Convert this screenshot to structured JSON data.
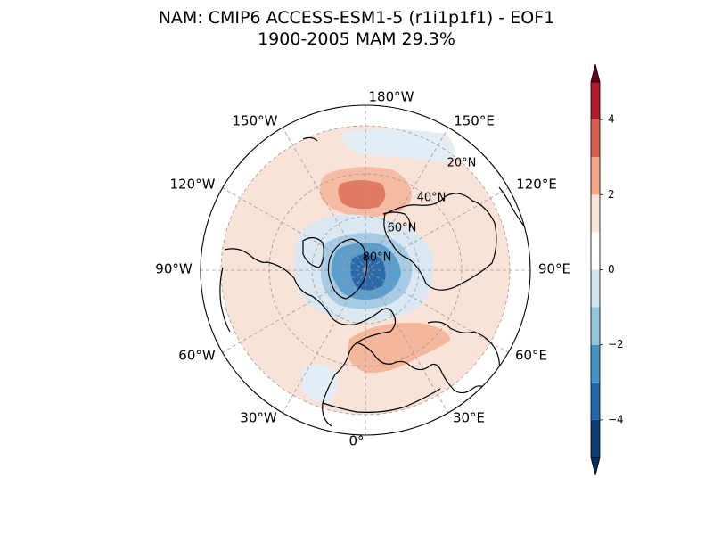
{
  "title": {
    "line1": "NAM: CMIP6 ACCESS-ESM1-5 (r1i1p1f1) - EOF1",
    "line2": "1900-2005 MAM 29.3%"
  },
  "map": {
    "projection": "north-polar-stereographic",
    "central_longitude": 0,
    "min_latitude": 20,
    "longitude_labels": [
      "180°W",
      "150°E",
      "120°E",
      "90°E",
      "60°E",
      "30°E",
      "0°",
      "30°W",
      "60°W",
      "90°W",
      "120°W",
      "150°W"
    ],
    "latitude_labels": [
      "20°N",
      "40°N",
      "60°N",
      "80°N"
    ],
    "gridlines": true,
    "coastlines": true,
    "field_summary": {
      "negative_center": "Arctic / Greenland, minimum below -4",
      "positive_centers": [
        "North Pacific near Aleutians (about 3)",
        "Europe / North Atlantic (about 2)"
      ],
      "background": "weak positive (0 to 1) over subtropics"
    }
  },
  "colorbar": {
    "orientation": "vertical",
    "levels": [
      -5,
      -4,
      -3,
      -2,
      -1,
      0,
      1,
      2,
      3,
      4,
      5
    ],
    "colors": [
      "#0b3b70",
      "#2166ac",
      "#4393c3",
      "#92c5de",
      "#d1e5f0",
      "#ffffff",
      "#fbe4d6",
      "#f4a582",
      "#d6604d",
      "#b2182b",
      "#67001f"
    ],
    "under_color": "#053061",
    "over_color": "#67001f",
    "tick_labels": [
      "4",
      "2",
      "0",
      "−2",
      "−4"
    ],
    "extend": "both"
  }
}
